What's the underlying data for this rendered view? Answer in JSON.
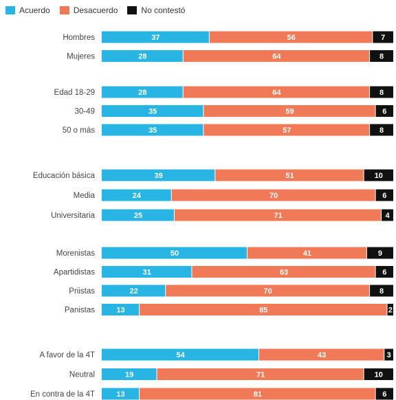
{
  "chart_data": {
    "type": "bar",
    "orientation": "horizontal",
    "stacked": true,
    "legend_placement": "top-left",
    "series": [
      {
        "name": "Acuerdo",
        "color": "#29b5e3",
        "values": [
          37,
          28,
          28,
          35,
          35,
          39,
          24,
          25,
          50,
          31,
          22,
          13,
          54,
          19,
          13
        ]
      },
      {
        "name": "Desacuerdo",
        "color": "#f07a57",
        "values": [
          56,
          64,
          64,
          59,
          57,
          51,
          70,
          71,
          41,
          63,
          70,
          85,
          43,
          71,
          81
        ]
      },
      {
        "name": "No contestó",
        "color": "#111111",
        "values": [
          7,
          8,
          8,
          6,
          8,
          10,
          6,
          4,
          9,
          6,
          8,
          2,
          3,
          10,
          6
        ]
      }
    ],
    "categories": [
      "Hombres",
      "Mujeres",
      "Edad 18-29",
      "30-49",
      "50 o más",
      "Educación básica",
      "Media",
      "Universitaria",
      "Morenistas",
      "Apartidistas",
      "Priistas",
      "Panistas",
      "A favor de la 4T",
      "Neutral",
      "En contra de la 4T"
    ],
    "groups": [
      [
        "Hombres",
        "Mujeres"
      ],
      [
        "Edad 18-29",
        "30-49",
        "50 o más"
      ],
      [
        "Educación básica",
        "Media",
        "Universitaria"
      ],
      [
        "Morenistas",
        "Apartidistas",
        "Priistas",
        "Panistas"
      ],
      [
        "A favor de la 4T",
        "Neutral",
        "En contra de la 4T"
      ]
    ]
  }
}
